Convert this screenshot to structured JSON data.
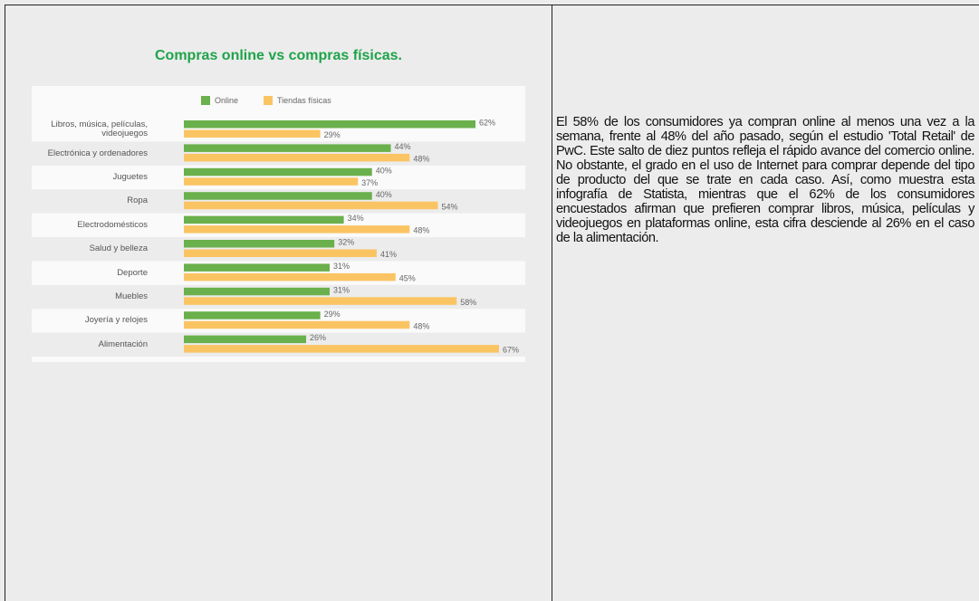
{
  "chart_data": {
    "type": "bar",
    "orientation": "horizontal",
    "title": "Compras online vs compras físicas.",
    "categories": [
      "Libros, música, películas, videojuegos",
      "Electrónica y ordenadores",
      "Juguetes",
      "Ropa",
      "Electrodomésticos",
      "Salud y belleza",
      "Deporte",
      "Muebles",
      "Joyería y relojes",
      "Alimentación"
    ],
    "series": [
      {
        "name": "Online",
        "color": "#6ab04c",
        "values": [
          62,
          44,
          40,
          40,
          34,
          32,
          31,
          31,
          29,
          26
        ],
        "value_labels": [
          "62%",
          "44%",
          "40%",
          "40%",
          "34%",
          "32%",
          "31%",
          "31%",
          "29%",
          "26%"
        ]
      },
      {
        "name": "Tiendas físicas",
        "color": "#fbc463",
        "values": [
          29,
          48,
          37,
          54,
          48,
          41,
          45,
          58,
          48,
          67
        ],
        "value_labels": [
          "29%",
          "48%",
          "37%",
          "54%",
          "48%",
          "41%",
          "45%",
          "58%",
          "48%",
          "67%"
        ]
      }
    ],
    "legend": "top"
  },
  "paragraph": "El 58% de los consumidores ya compran online al menos una vez a la semana, frente al 48% del año pasado, según el estudio 'Total Retail' de PwC. Este salto de diez puntos refleja el rápido avance del comercio online. No obstante, el grado en el uso de Internet para comprar depende del tipo de producto del que se trate en cada caso. Así, como muestra esta infografía de Statista, mientras que el 62% de los consumidores encuestados afirman que prefieren comprar libros, música, películas y videojuegos en plataformas online, esta cifra desciende al 26% en el caso de la alimentación."
}
